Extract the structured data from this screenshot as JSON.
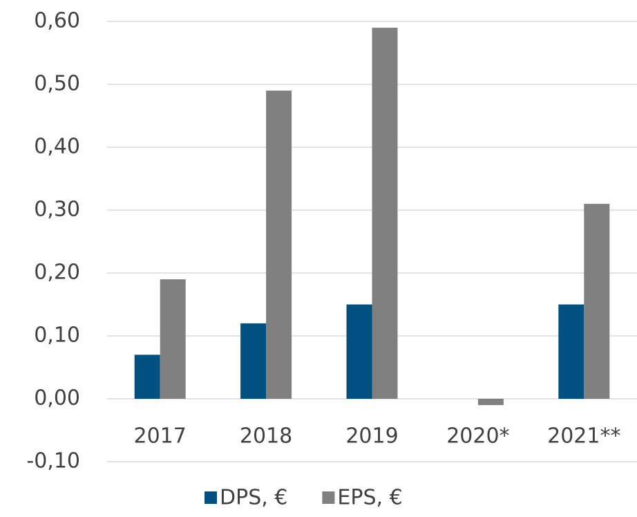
{
  "chart_data": {
    "type": "bar",
    "categories": [
      "2017",
      "2018",
      "2019",
      "2020*",
      "2021**"
    ],
    "series": [
      {
        "name": "DPS, €",
        "color": "#00517f",
        "values": [
          0.07,
          0.12,
          0.15,
          0,
          0.15
        ]
      },
      {
        "name": "EPS, €",
        "color": "#808080",
        "values": [
          0.19,
          0.49,
          0.59,
          -0.01,
          0.31
        ]
      }
    ],
    "ylim": [
      -0.1,
      0.6
    ],
    "yticks": [
      {
        "value": -0.1,
        "label": "-0,10"
      },
      {
        "value": 0,
        "label": "0,00"
      },
      {
        "value": 0.1,
        "label": "0,10"
      },
      {
        "value": 0.2,
        "label": "0,20"
      },
      {
        "value": 0.3,
        "label": "0,30"
      },
      {
        "value": 0.4,
        "label": "0,40"
      },
      {
        "value": 0.5,
        "label": "0,50"
      },
      {
        "value": 0.6,
        "label": "0,60"
      }
    ],
    "grid": true,
    "legend": "bottom"
  }
}
